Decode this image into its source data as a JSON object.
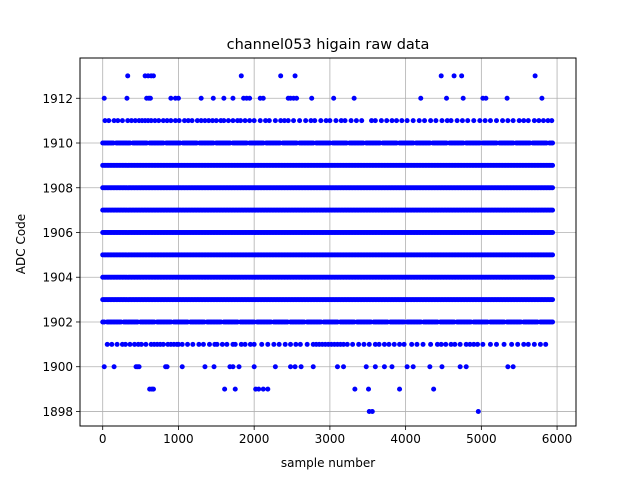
{
  "chart_data": {
    "type": "scatter",
    "title": "channel053 higain raw data",
    "xlabel": "sample number",
    "ylabel": "ADC Code",
    "xlim": [
      -300,
      6250
    ],
    "ylim": [
      1897.35,
      1913.8
    ],
    "x_ticks": [
      0,
      1000,
      2000,
      3000,
      4000,
      5000,
      6000
    ],
    "y_ticks": [
      1898,
      1900,
      1902,
      1904,
      1906,
      1908,
      1910,
      1912
    ],
    "grid": true,
    "marker_color": "#0000ff",
    "series": [
      {
        "x_range": [
          0,
          5950
        ],
        "x_step": 20,
        "dense_levels": [
          1903,
          1904,
          1905,
          1906,
          1907,
          1908,
          1909
        ],
        "medium_levels": [
          1902,
          1910
        ],
        "sparse_level_points": {
          "1911": [
            30,
            80,
            150,
            200,
            260,
            330,
            380,
            430,
            480,
            520,
            560,
            600,
            640,
            690,
            740,
            800,
            850,
            900,
            960,
            1010,
            1080,
            1130,
            1180,
            1250,
            1300,
            1350,
            1400,
            1450,
            1500,
            1560,
            1600,
            1660,
            1720,
            1780,
            1820,
            1880,
            1940,
            2000,
            2080,
            2150,
            2200,
            2280,
            2350,
            2400,
            2450,
            2520,
            2600,
            2680,
            2750,
            2800,
            2880,
            2950,
            3000,
            3080,
            3150,
            3200,
            3280,
            3350,
            3420,
            3550,
            3600,
            3680,
            3750,
            3820,
            3880,
            3950,
            4020,
            4100,
            4180,
            4250,
            4330,
            4400,
            4480,
            4550,
            4600,
            4680,
            4750,
            4820,
            4900,
            4980,
            5050,
            5120,
            5200,
            5280,
            5350,
            5420,
            5500,
            5560,
            5620,
            5700,
            5760,
            5820,
            5880,
            5930
          ],
          "1901": [
            60,
            120,
            190,
            260,
            300,
            360,
            420,
            470,
            510,
            570,
            640,
            680,
            720,
            760,
            800,
            860,
            900,
            940,
            980,
            1000,
            1050,
            1120,
            1190,
            1270,
            1330,
            1410,
            1480,
            1510,
            1580,
            1640,
            1720,
            1750,
            1830,
            1880,
            1950,
            2000,
            2100,
            2180,
            2260,
            2330,
            2410,
            2480,
            2550,
            2610,
            2700,
            2780,
            2820,
            2860,
            2900,
            2940,
            2980,
            3020,
            3060,
            3100,
            3140,
            3180,
            3230,
            3300,
            3380,
            3450,
            3520,
            3600,
            3650,
            3720,
            3780,
            3850,
            3920,
            3980,
            4080,
            4150,
            4230,
            4330,
            4420,
            4470,
            4530,
            4600,
            4650,
            4720,
            4800,
            4850,
            4900,
            4950,
            5020,
            5120,
            5200,
            5300,
            5400,
            5480,
            5560,
            5620,
            5700,
            5780,
            5850
          ],
          "1912": [
            20,
            320,
            580,
            610,
            630,
            900,
            960,
            1000,
            1300,
            1460,
            1600,
            1720,
            1860,
            1900,
            1940,
            2080,
            2120,
            2450,
            2480,
            2520,
            2560,
            2760,
            3050,
            3320,
            4200,
            4540,
            4760,
            5020,
            5060,
            5340,
            5800
          ],
          "1900": [
            20,
            150,
            440,
            460,
            480,
            830,
            850,
            1050,
            1350,
            1470,
            1680,
            1720,
            1800,
            2000,
            2280,
            2480,
            2540,
            2620,
            2780,
            3100,
            3180,
            3480,
            3600,
            3720,
            3820,
            4020,
            4100,
            4320,
            4480,
            4720,
            4800,
            5350,
            5420
          ],
          "1913": [
            330,
            560,
            600,
            640,
            670,
            1830,
            2350,
            2540,
            4470,
            4640,
            4740,
            5710
          ],
          "1899": [
            620,
            650,
            670,
            1610,
            1750,
            2020,
            2060,
            2120,
            2180,
            3330,
            3510,
            3920,
            4370
          ],
          "1898": [
            3520,
            3560,
            4960
          ]
        }
      }
    ]
  }
}
